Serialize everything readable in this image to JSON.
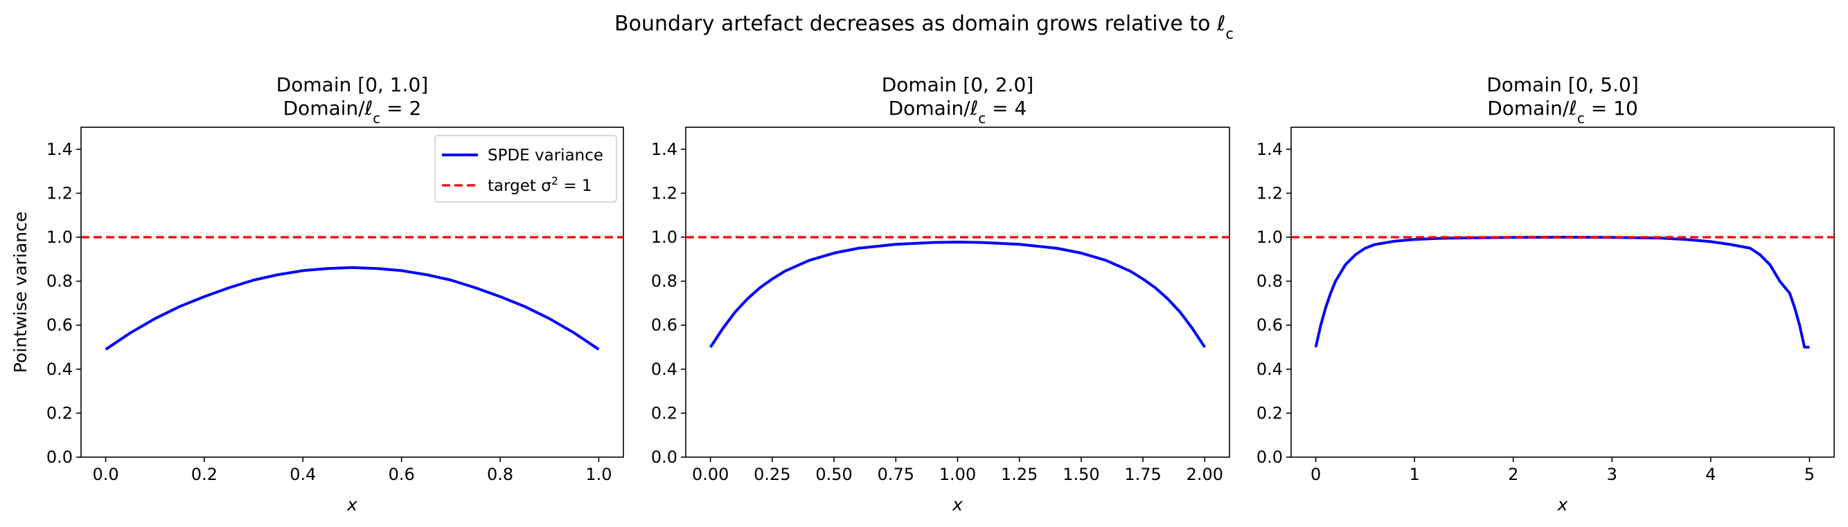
{
  "figure": {
    "title": "Boundary artefact decreases as domain grows relative to ℓ",
    "title_subscript": "c"
  },
  "chart_data": [
    {
      "type": "line",
      "title_line1": "Domain [0, 1.0]",
      "title_line2_prefix": "Domain/ℓ",
      "title_line2_sub": "c",
      "title_line2_suffix": " = 2",
      "xlabel": "x",
      "ylabel": "Pointwise variance",
      "xlim": [
        -0.05,
        1.05
      ],
      "ylim": [
        0,
        1.5
      ],
      "xticks": [
        0.0,
        0.2,
        0.4,
        0.6,
        0.8,
        1.0
      ],
      "xtick_labels": [
        "0.0",
        "0.2",
        "0.4",
        "0.6",
        "0.8",
        "1.0"
      ],
      "yticks": [
        0.0,
        0.2,
        0.4,
        0.6,
        0.8,
        1.0,
        1.2,
        1.4
      ],
      "ytick_labels": [
        "0.0",
        "0.2",
        "0.4",
        "0.6",
        "0.8",
        "1.0",
        "1.2",
        "1.4"
      ],
      "legend": {
        "position": "upper-right",
        "entries": [
          {
            "label": "SPDE variance",
            "style": "solid",
            "color": "#0000ff"
          },
          {
            "label_prefix": "target σ",
            "label_sup": "2",
            "label_suffix": " = 1",
            "style": "dashed",
            "color": "#ff0000"
          }
        ]
      },
      "series": [
        {
          "name": "SPDE variance",
          "color": "#0000ff",
          "style": "solid",
          "x": [
            0.0,
            0.05,
            0.1,
            0.15,
            0.2,
            0.25,
            0.3,
            0.35,
            0.4,
            0.45,
            0.5,
            0.55,
            0.6,
            0.65,
            0.7,
            0.75,
            0.8,
            0.85,
            0.9,
            0.95,
            1.0
          ],
          "y": [
            0.49,
            0.565,
            0.63,
            0.685,
            0.73,
            0.77,
            0.805,
            0.83,
            0.848,
            0.858,
            0.862,
            0.858,
            0.848,
            0.83,
            0.805,
            0.77,
            0.73,
            0.685,
            0.63,
            0.565,
            0.49
          ]
        },
        {
          "name": "target σ² = 1",
          "color": "#ff0000",
          "style": "dashed",
          "hline": 1.0
        }
      ]
    },
    {
      "type": "line",
      "title_line1": "Domain [0, 2.0]",
      "title_line2_prefix": "Domain/ℓ",
      "title_line2_sub": "c",
      "title_line2_suffix": " = 4",
      "xlabel": "x",
      "ylabel": "",
      "xlim": [
        -0.1,
        2.1
      ],
      "ylim": [
        0,
        1.5
      ],
      "xticks": [
        0.0,
        0.25,
        0.5,
        0.75,
        1.0,
        1.25,
        1.5,
        1.75,
        2.0
      ],
      "xtick_labels": [
        "0.00",
        "0.25",
        "0.50",
        "0.75",
        "1.00",
        "1.25",
        "1.50",
        "1.75",
        "2.00"
      ],
      "yticks": [
        0.0,
        0.2,
        0.4,
        0.6,
        0.8,
        1.0,
        1.2,
        1.4
      ],
      "ytick_labels": [
        "0.0",
        "0.2",
        "0.4",
        "0.6",
        "0.8",
        "1.0",
        "1.2",
        "1.4"
      ],
      "series": [
        {
          "name": "SPDE variance",
          "color": "#0000ff",
          "style": "solid",
          "x": [
            0.0,
            0.05,
            0.1,
            0.15,
            0.2,
            0.25,
            0.3,
            0.4,
            0.5,
            0.6,
            0.75,
            0.9,
            1.0,
            1.1,
            1.25,
            1.4,
            1.5,
            1.6,
            1.7,
            1.75,
            1.8,
            1.85,
            1.9,
            1.95,
            2.0
          ],
          "y": [
            0.5,
            0.585,
            0.66,
            0.72,
            0.77,
            0.81,
            0.845,
            0.895,
            0.928,
            0.95,
            0.968,
            0.976,
            0.978,
            0.976,
            0.968,
            0.95,
            0.928,
            0.895,
            0.845,
            0.81,
            0.77,
            0.72,
            0.66,
            0.585,
            0.5
          ]
        },
        {
          "name": "target σ² = 1",
          "color": "#ff0000",
          "style": "dashed",
          "hline": 1.0
        }
      ]
    },
    {
      "type": "line",
      "title_line1": "Domain [0, 5.0]",
      "title_line2_prefix": "Domain/ℓ",
      "title_line2_sub": "c",
      "title_line2_suffix": " = 10",
      "xlabel": "x",
      "ylabel": "",
      "xlim": [
        -0.25,
        5.25
      ],
      "ylim": [
        0,
        1.5
      ],
      "xticks": [
        0,
        1,
        2,
        3,
        4,
        5
      ],
      "xtick_labels": [
        "0",
        "1",
        "2",
        "3",
        "4",
        "5"
      ],
      "yticks": [
        0.0,
        0.2,
        0.4,
        0.6,
        0.8,
        1.0,
        1.2,
        1.4
      ],
      "ytick_labels": [
        "0.0",
        "0.2",
        "0.4",
        "0.6",
        "0.8",
        "1.0",
        "1.2",
        "1.4"
      ],
      "series": [
        {
          "name": "SPDE variance",
          "color": "#0000ff",
          "style": "solid",
          "x": [
            0.0,
            0.05,
            0.1,
            0.15,
            0.2,
            0.3,
            0.4,
            0.5,
            0.6,
            0.8,
            1.0,
            1.25,
            1.5,
            2.0,
            2.5,
            3.0,
            3.5,
            3.75,
            4.0,
            4.2,
            4.4,
            4.5,
            4.6,
            4.7,
            4.8,
            4.85,
            4.9,
            4.95,
            5.0
          ],
          "y": [
            0.5,
            0.6,
            0.68,
            0.745,
            0.8,
            0.875,
            0.92,
            0.95,
            0.967,
            0.982,
            0.99,
            0.995,
            0.997,
            0.999,
            1.0,
            0.999,
            0.996,
            0.99,
            0.98,
            0.967,
            0.95,
            0.92,
            0.875,
            0.8,
            0.745,
            0.68,
            0.6,
            0.5,
            0.5
          ]
        },
        {
          "name": "target σ² = 1",
          "color": "#ff0000",
          "style": "dashed",
          "hline": 1.0
        }
      ]
    }
  ]
}
